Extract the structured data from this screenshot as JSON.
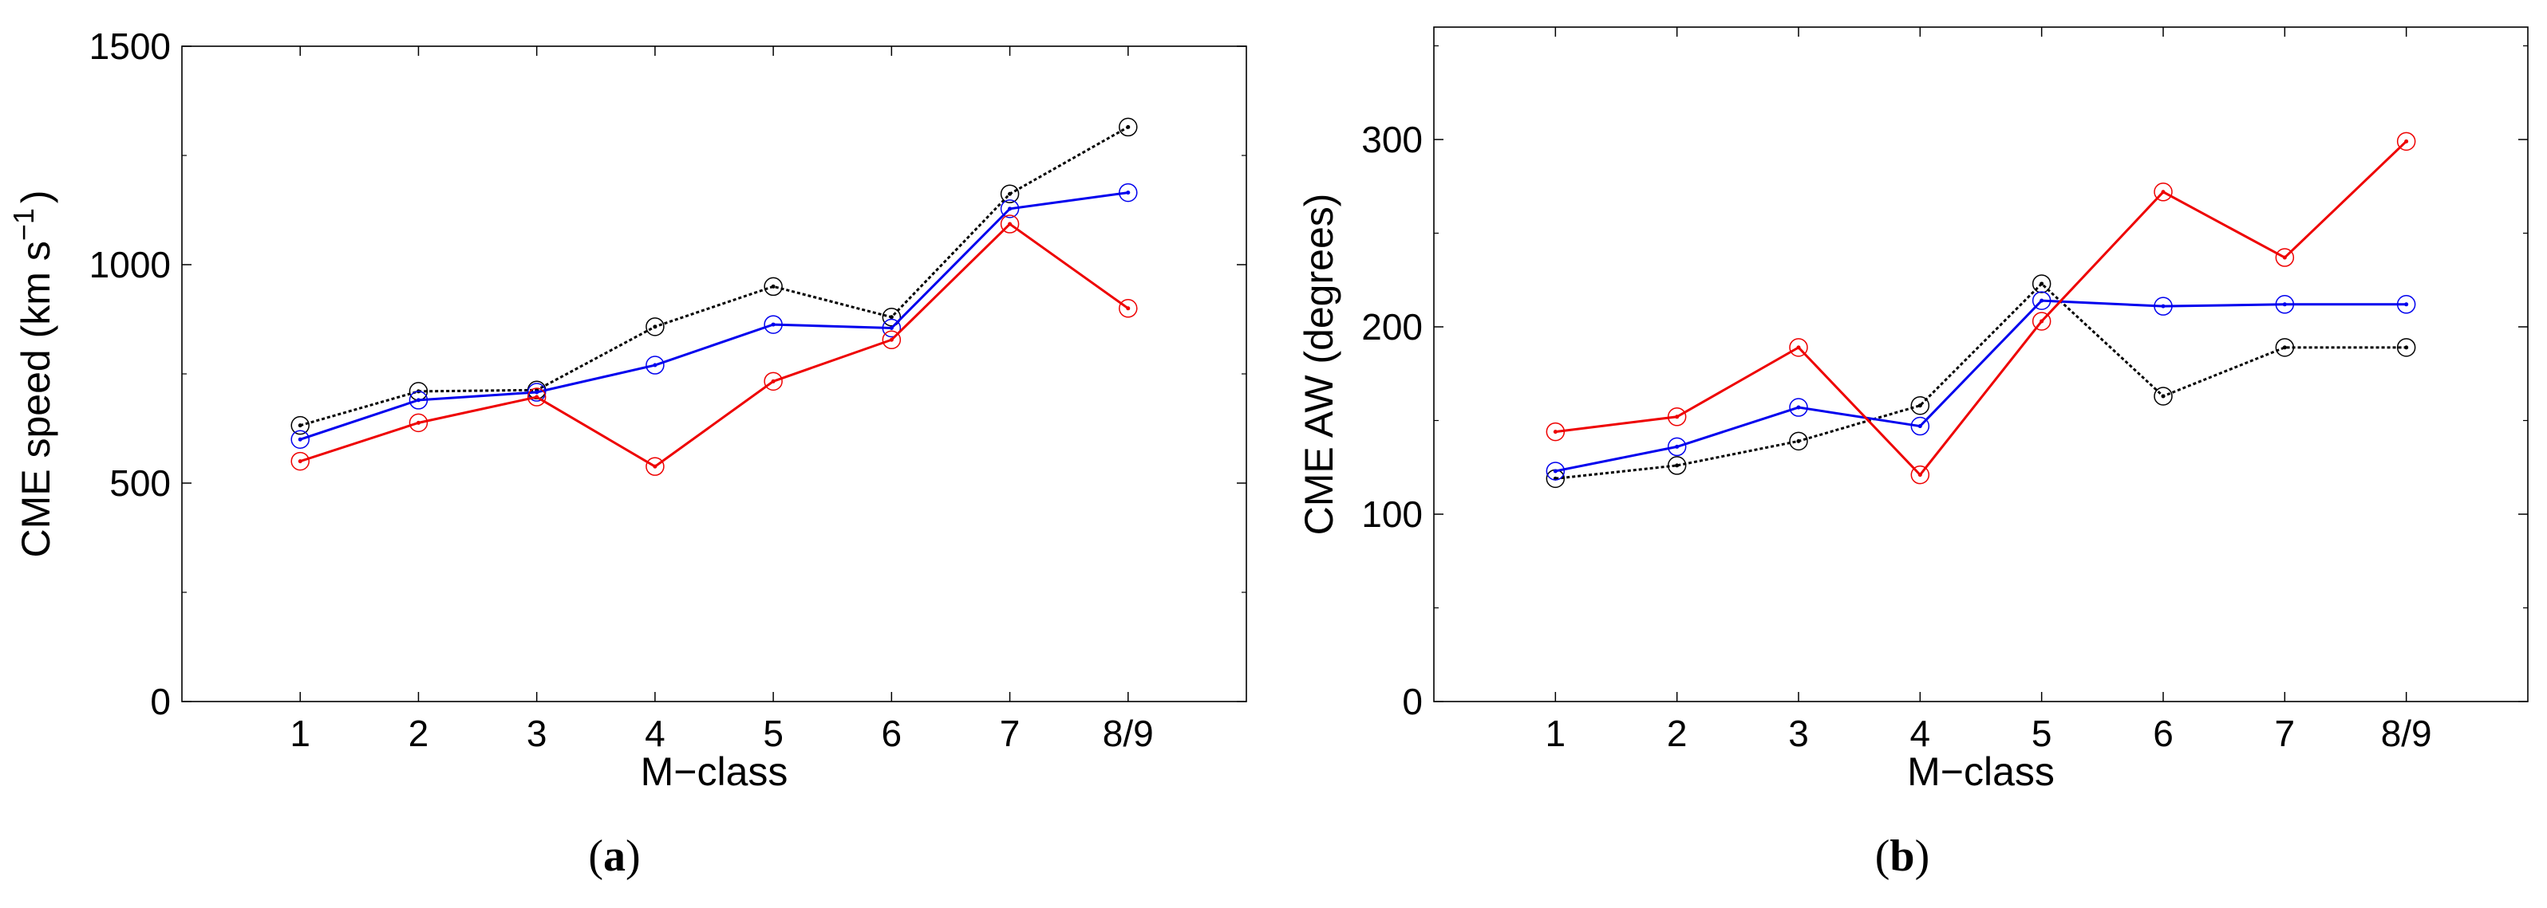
{
  "chart_data": [
    {
      "type": "line",
      "panel_label": "a",
      "xlabel": "M−class",
      "ylabel": "CME  speed  (km s",
      "ylabel_sup": "−1",
      "ylabel_close": ")",
      "categories": [
        "1",
        "2",
        "3",
        "4",
        "5",
        "6",
        "7",
        "8/9"
      ],
      "xlim": [
        0,
        9
      ],
      "ylim": [
        0,
        1500
      ],
      "yticks": [
        0,
        500,
        1000,
        1500
      ],
      "grid": false,
      "series": [
        {
          "name": "black",
          "color": "#000000",
          "dash": "4,3",
          "values": [
            632,
            710,
            713,
            858,
            950,
            880,
            1162,
            1315
          ]
        },
        {
          "name": "blue",
          "color": "#0000ee",
          "dash": "",
          "values": [
            600,
            690,
            708,
            770,
            863,
            855,
            1128,
            1165
          ]
        },
        {
          "name": "red",
          "color": "#ee0000",
          "dash": "",
          "values": [
            550,
            638,
            697,
            538,
            733,
            828,
            1093,
            900
          ]
        }
      ]
    },
    {
      "type": "line",
      "panel_label": "b",
      "xlabel": "M−class",
      "ylabel": "CME  AW  (degrees)",
      "categories": [
        "1",
        "2",
        "3",
        "4",
        "5",
        "6",
        "7",
        "8/9"
      ],
      "xlim": [
        0,
        9
      ],
      "ylim": [
        0,
        360
      ],
      "yticks": [
        0,
        100,
        200,
        300
      ],
      "grid": false,
      "series": [
        {
          "name": "black",
          "color": "#000000",
          "dash": "4,3",
          "values": [
            119,
            126,
            139,
            158,
            223,
            163,
            189,
            189
          ]
        },
        {
          "name": "blue",
          "color": "#0000ee",
          "dash": "",
          "values": [
            123,
            136,
            157,
            147,
            214,
            211,
            212,
            212
          ]
        },
        {
          "name": "red",
          "color": "#ee0000",
          "dash": "",
          "values": [
            144,
            152,
            189,
            121,
            203,
            272,
            237,
            299
          ]
        }
      ]
    }
  ]
}
